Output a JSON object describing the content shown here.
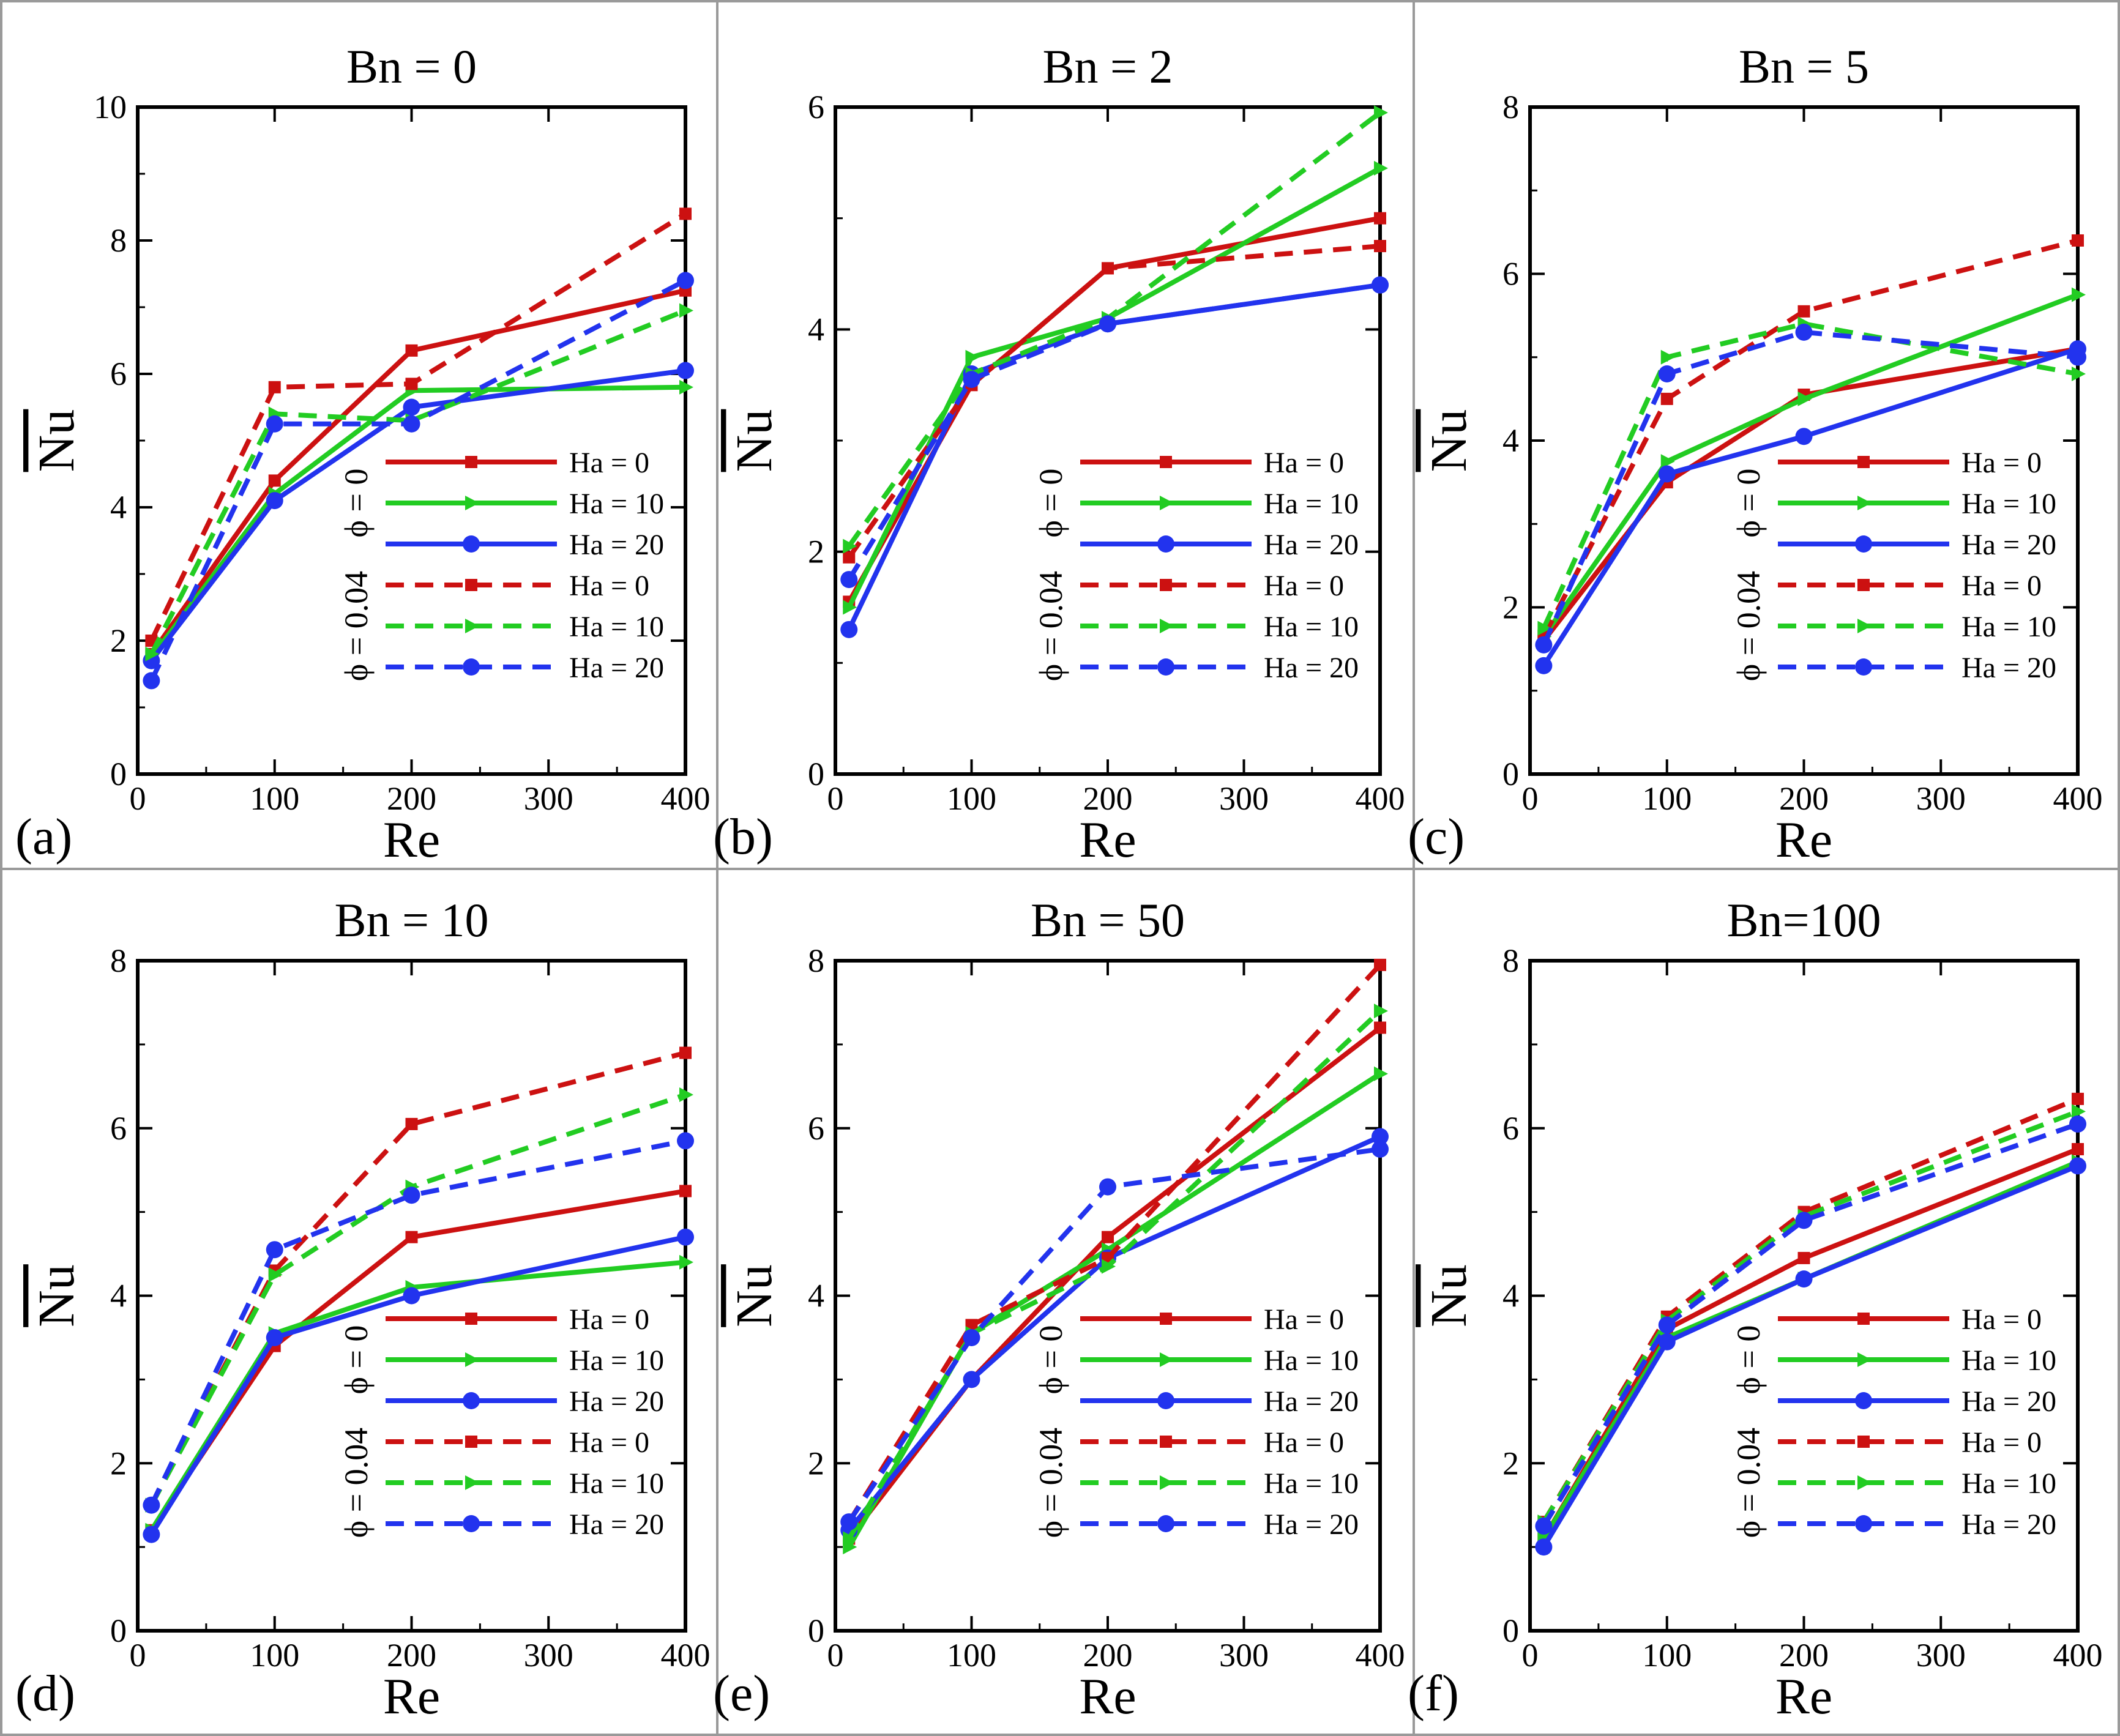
{
  "figure": {
    "series_legend": [
      "Ha = 0",
      "Ha = 10",
      "Ha = 20",
      "Ha = 0",
      "Ha = 10",
      "Ha = 20"
    ],
    "series_colors": [
      "#cc1111",
      "#22cc22",
      "#2233ee",
      "#cc1111",
      "#22cc22",
      "#2233ee"
    ],
    "series_styles": [
      "solid",
      "solid",
      "solid",
      "dashed",
      "dashed",
      "dashed"
    ],
    "series_markers": [
      "square",
      "triangle",
      "circle",
      "square",
      "triangle",
      "circle"
    ],
    "legend_group_labels": [
      "ϕ = 0",
      "ϕ = 0.04"
    ],
    "legend_position": "lower-right"
  },
  "chart_data": [
    {
      "type": "line",
      "panel_label": "(a)",
      "title": "Bn = 0",
      "xlabel": "Re",
      "ylabel": "Nu",
      "xlim": [
        0,
        400
      ],
      "ylim": [
        0,
        10
      ],
      "xticks": [
        0,
        100,
        200,
        300,
        400
      ],
      "yticks": [
        0,
        2,
        4,
        6,
        8,
        10
      ],
      "x": [
        10,
        100,
        200,
        400
      ],
      "series": [
        {
          "values": [
            1.8,
            4.4,
            6.35,
            7.25
          ]
        },
        {
          "values": [
            1.75,
            4.2,
            5.75,
            5.8
          ]
        },
        {
          "values": [
            1.7,
            4.1,
            5.5,
            6.05
          ]
        },
        {
          "values": [
            2.0,
            5.8,
            5.85,
            8.4
          ]
        },
        {
          "values": [
            1.8,
            5.4,
            5.3,
            6.95
          ]
        },
        {
          "values": [
            1.4,
            5.25,
            5.25,
            7.4
          ]
        }
      ]
    },
    {
      "type": "line",
      "panel_label": "(b)",
      "title": "Bn = 2",
      "xlabel": "Re",
      "ylabel": "Nu",
      "xlim": [
        0,
        400
      ],
      "ylim": [
        0,
        6
      ],
      "xticks": [
        0,
        100,
        200,
        300,
        400
      ],
      "yticks": [
        0,
        2,
        4,
        6
      ],
      "x": [
        10,
        100,
        200,
        400
      ],
      "series": [
        {
          "values": [
            1.55,
            3.5,
            4.55,
            5.0
          ]
        },
        {
          "values": [
            1.5,
            3.75,
            4.1,
            5.45
          ]
        },
        {
          "values": [
            1.3,
            3.6,
            4.05,
            4.4
          ]
        },
        {
          "values": [
            1.95,
            3.5,
            4.55,
            4.75
          ]
        },
        {
          "values": [
            2.05,
            3.6,
            4.1,
            5.95
          ]
        },
        {
          "values": [
            1.75,
            3.55,
            4.05,
            4.4
          ]
        }
      ]
    },
    {
      "type": "line",
      "panel_label": "(c)",
      "title": "Bn = 5",
      "xlabel": "Re",
      "ylabel": "Nu",
      "xlim": [
        0,
        400
      ],
      "ylim": [
        0,
        8
      ],
      "xticks": [
        0,
        100,
        200,
        300,
        400
      ],
      "yticks": [
        0,
        2,
        4,
        6,
        8
      ],
      "x": [
        10,
        100,
        200,
        400
      ],
      "series": [
        {
          "values": [
            1.6,
            3.5,
            4.55,
            5.1
          ]
        },
        {
          "values": [
            1.65,
            3.75,
            4.5,
            5.75
          ]
        },
        {
          "values": [
            1.3,
            3.6,
            4.05,
            5.1
          ]
        },
        {
          "values": [
            1.65,
            4.5,
            5.55,
            6.4
          ]
        },
        {
          "values": [
            1.75,
            5.0,
            5.4,
            4.8
          ]
        },
        {
          "values": [
            1.55,
            4.8,
            5.3,
            5.0
          ]
        }
      ]
    },
    {
      "type": "line",
      "panel_label": "(d)",
      "title": "Bn = 10",
      "xlabel": "Re",
      "ylabel": "Nu",
      "xlim": [
        0,
        400
      ],
      "ylim": [
        0,
        8
      ],
      "xticks": [
        0,
        100,
        200,
        300,
        400
      ],
      "yticks": [
        0,
        2,
        4,
        6,
        8
      ],
      "x": [
        10,
        100,
        200,
        400
      ],
      "series": [
        {
          "values": [
            1.2,
            3.4,
            4.7,
            5.25
          ]
        },
        {
          "values": [
            1.2,
            3.55,
            4.1,
            4.4
          ]
        },
        {
          "values": [
            1.15,
            3.5,
            4.0,
            4.7
          ]
        },
        {
          "values": [
            1.5,
            4.3,
            6.05,
            6.9
          ]
        },
        {
          "values": [
            1.5,
            4.25,
            5.3,
            6.4
          ]
        },
        {
          "values": [
            1.5,
            4.55,
            5.2,
            5.85
          ]
        }
      ]
    },
    {
      "type": "line",
      "panel_label": "(e)",
      "title": "Bn = 50",
      "xlabel": "Re",
      "ylabel": "Nu",
      "xlim": [
        0,
        400
      ],
      "ylim": [
        0,
        8
      ],
      "xticks": [
        0,
        100,
        200,
        300,
        400
      ],
      "yticks": [
        0,
        2,
        4,
        6,
        8
      ],
      "x": [
        10,
        100,
        200,
        400
      ],
      "series": [
        {
          "values": [
            1.1,
            3.0,
            4.7,
            7.2
          ]
        },
        {
          "values": [
            1.0,
            3.55,
            4.55,
            6.65
          ]
        },
        {
          "values": [
            1.2,
            3.0,
            4.45,
            5.9
          ]
        },
        {
          "values": [
            1.3,
            3.65,
            4.45,
            7.95
          ]
        },
        {
          "values": [
            1.1,
            3.55,
            4.35,
            7.4
          ]
        },
        {
          "values": [
            1.3,
            3.5,
            5.3,
            5.75
          ]
        }
      ]
    },
    {
      "type": "line",
      "panel_label": "(f)",
      "title": "Bn=100",
      "xlabel": "Re",
      "ylabel": "Nu",
      "xlim": [
        0,
        400
      ],
      "ylim": [
        0,
        8
      ],
      "xticks": [
        0,
        100,
        200,
        300,
        400
      ],
      "yticks": [
        0,
        2,
        4,
        6,
        8
      ],
      "x": [
        10,
        100,
        200,
        400
      ],
      "series": [
        {
          "values": [
            1.1,
            3.6,
            4.45,
            5.75
          ]
        },
        {
          "values": [
            1.1,
            3.5,
            4.2,
            5.6
          ]
        },
        {
          "values": [
            1.0,
            3.45,
            4.2,
            5.55
          ]
        },
        {
          "values": [
            1.3,
            3.75,
            5.0,
            6.35
          ]
        },
        {
          "values": [
            1.3,
            3.7,
            4.95,
            6.2
          ]
        },
        {
          "values": [
            1.25,
            3.65,
            4.9,
            6.05
          ]
        }
      ]
    }
  ]
}
